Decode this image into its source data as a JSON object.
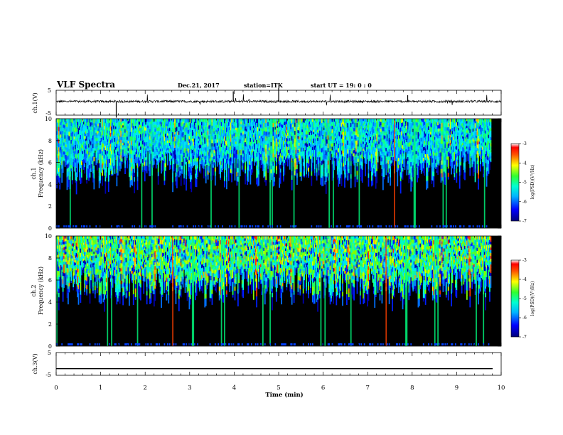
{
  "header": {
    "title": "VLF Spectra",
    "date": "Dec.21, 2017",
    "station": "station=ITK",
    "start": "start  UT =   19: 0  : 0"
  },
  "chart_data": [
    {
      "type": "line",
      "ylabel": "ch.1(V)",
      "ytick_labels": [
        "5",
        "-5"
      ],
      "ylim": [
        -5,
        5
      ],
      "x": [
        0,
        10
      ],
      "y_approx": [
        0.5,
        0.5
      ],
      "note": "noisy waveform near +0.5 V with sparse spikes"
    },
    {
      "type": "heatmap",
      "ylabel_channel": "ch.1",
      "ylabel": "Frequency (kHz)",
      "ytick_labels": [
        "0",
        "2",
        "4",
        "6",
        "8",
        "10"
      ],
      "ylim": [
        0,
        10
      ],
      "xlim": [
        0,
        10
      ],
      "colorbar": {
        "label": "log(PSD)(V²/Hz)",
        "ticks": [
          "-3",
          "-4",
          "-5",
          "-6",
          "-7"
        ],
        "range": [
          -7,
          -3
        ]
      }
    },
    {
      "type": "heatmap",
      "ylabel_channel": "ch.2",
      "ylabel": "Frequency (kHz)",
      "ytick_labels": [
        "0",
        "2",
        "4",
        "6",
        "8",
        "10"
      ],
      "ylim": [
        0,
        10
      ],
      "xlim": [
        0,
        10
      ],
      "colorbar": {
        "label": "log(PSD)(V²/Hz)",
        "ticks": [
          "-3",
          "-4",
          "-5",
          "-6",
          "-7"
        ],
        "range": [
          -7,
          -3
        ]
      }
    },
    {
      "type": "line",
      "ylabel": "ch.3(V)",
      "ytick_labels": [
        "5",
        "-5"
      ],
      "ylim": [
        -5,
        5
      ],
      "x": [
        0,
        10
      ],
      "y_approx": [
        -2.1,
        -2.1
      ]
    }
  ],
  "xaxis": {
    "label": "Time  (min)",
    "tick_labels": [
      "0",
      "1",
      "2",
      "3",
      "4",
      "5",
      "6",
      "7",
      "8",
      "9",
      "10"
    ],
    "xlim": [
      0,
      10
    ]
  }
}
